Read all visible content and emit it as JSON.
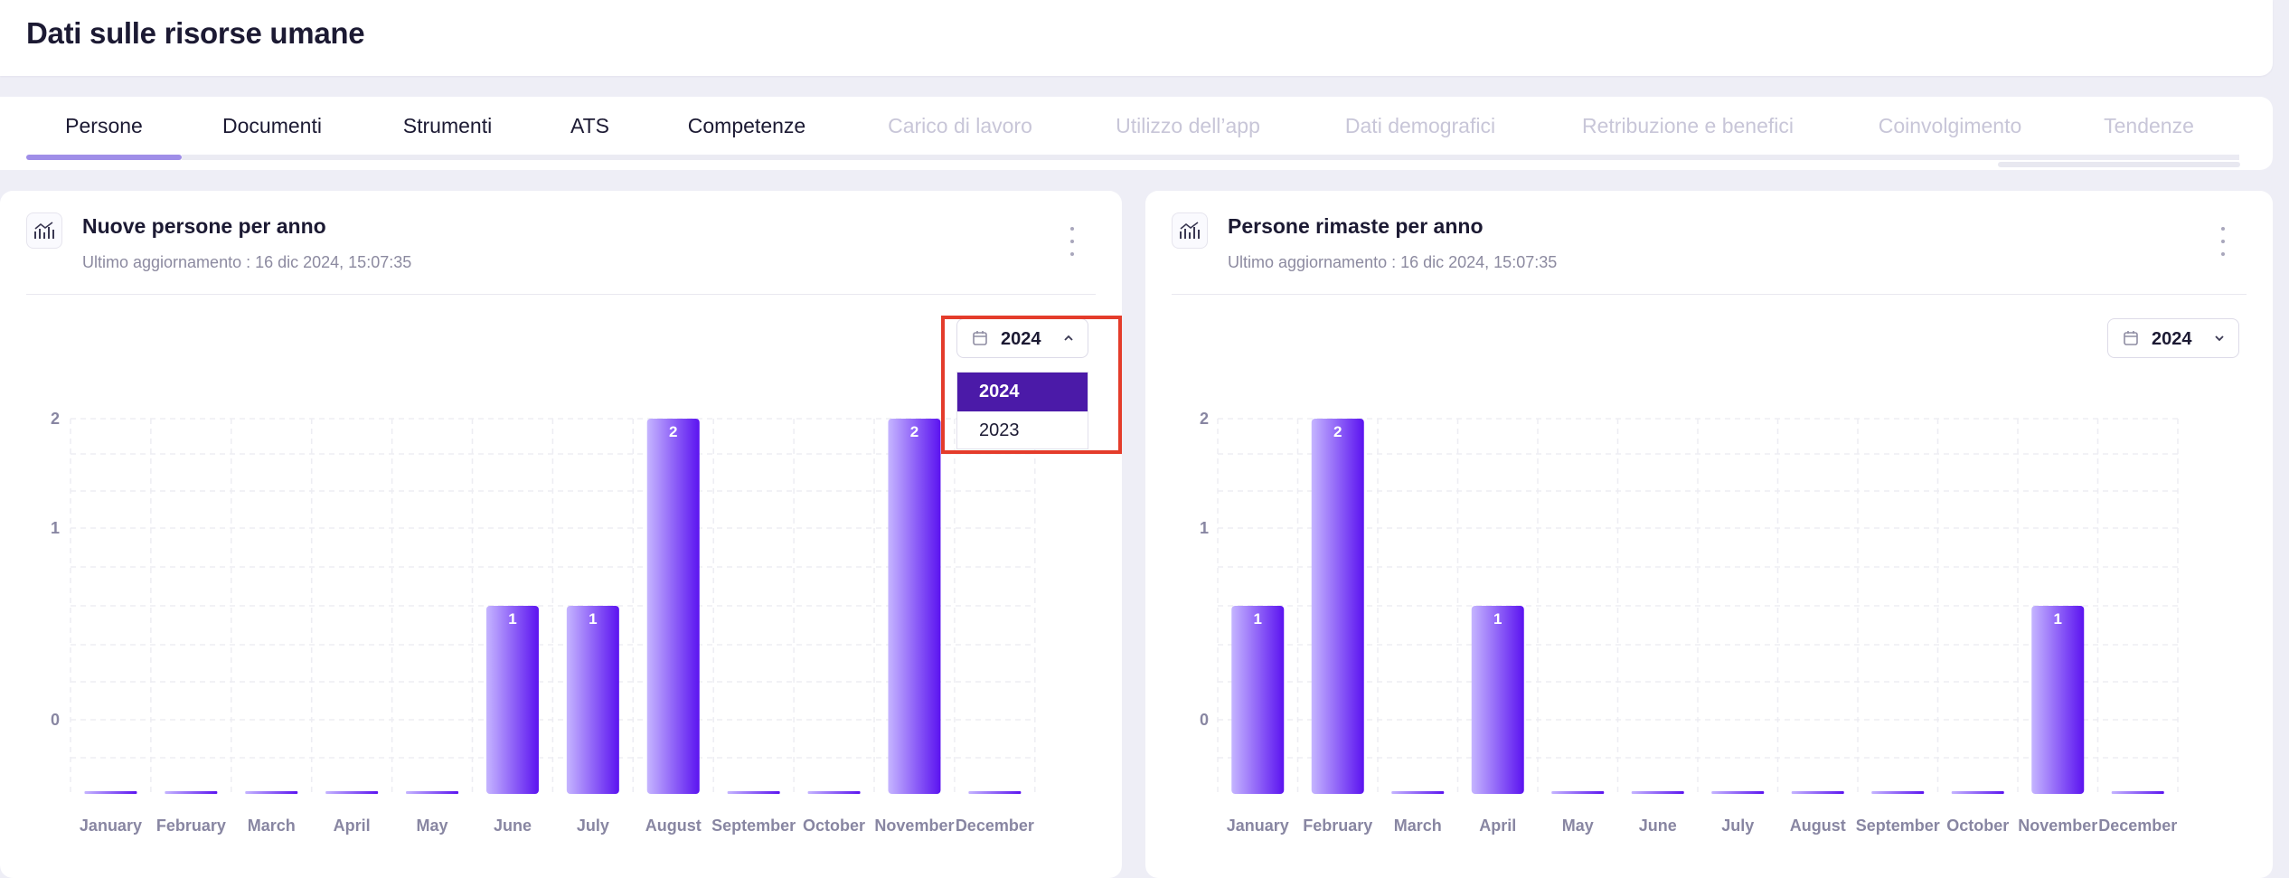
{
  "page": {
    "title": "Dati sulle risorse umane"
  },
  "tabs": [
    {
      "label": "Persone",
      "active": true,
      "enabled": true
    },
    {
      "label": "Documenti",
      "enabled": true
    },
    {
      "label": "Strumenti",
      "enabled": true
    },
    {
      "label": "ATS",
      "enabled": true
    },
    {
      "label": "Competenze",
      "enabled": true
    },
    {
      "label": "Carico di lavoro",
      "enabled": false
    },
    {
      "label": "Utilizzo dell’app",
      "enabled": false
    },
    {
      "label": "Dati demografici",
      "enabled": false
    },
    {
      "label": "Retribuzione e benefici",
      "enabled": false
    },
    {
      "label": "Coinvolgimento",
      "enabled": false
    },
    {
      "label": "Tendenze",
      "enabled": false
    }
  ],
  "cards": [
    {
      "title": "Nuove persone per anno",
      "updated": "Ultimo aggiornamento : 16 dic 2024, 15:07:35",
      "year": "2024",
      "dropdown_open": true,
      "dropdown_options": [
        "2024",
        "2023"
      ],
      "icon": "chart-icon"
    },
    {
      "title": "Persone rimaste per anno",
      "updated": "Ultimo aggiornamento : 16 dic 2024, 15:07:35",
      "year": "2024",
      "dropdown_open": false,
      "icon": "chart-icon"
    }
  ],
  "colors": {
    "accent": "#4b1aa8",
    "bar_top": "#c5b5ff",
    "bar_bottom": "#5b13f0",
    "highlight": "#e43c2b"
  },
  "chart_data": [
    {
      "type": "bar",
      "title": "Nuove persone per anno",
      "categories": [
        "January",
        "February",
        "March",
        "April",
        "May",
        "June",
        "July",
        "August",
        "September",
        "October",
        "November",
        "December"
      ],
      "values": [
        0,
        0,
        0,
        0,
        0,
        1,
        1,
        2,
        0,
        0,
        2,
        0
      ],
      "y_ticks": [
        "0",
        "1",
        "2"
      ],
      "grid": true
    },
    {
      "type": "bar",
      "title": "Persone rimaste per anno",
      "categories": [
        "January",
        "February",
        "March",
        "April",
        "May",
        "June",
        "July",
        "August",
        "September",
        "October",
        "November",
        "December"
      ],
      "values": [
        1,
        2,
        0,
        1,
        0,
        0,
        0,
        0,
        0,
        0,
        1,
        0
      ],
      "y_ticks": [
        "0",
        "1",
        "2"
      ],
      "grid": true
    }
  ]
}
